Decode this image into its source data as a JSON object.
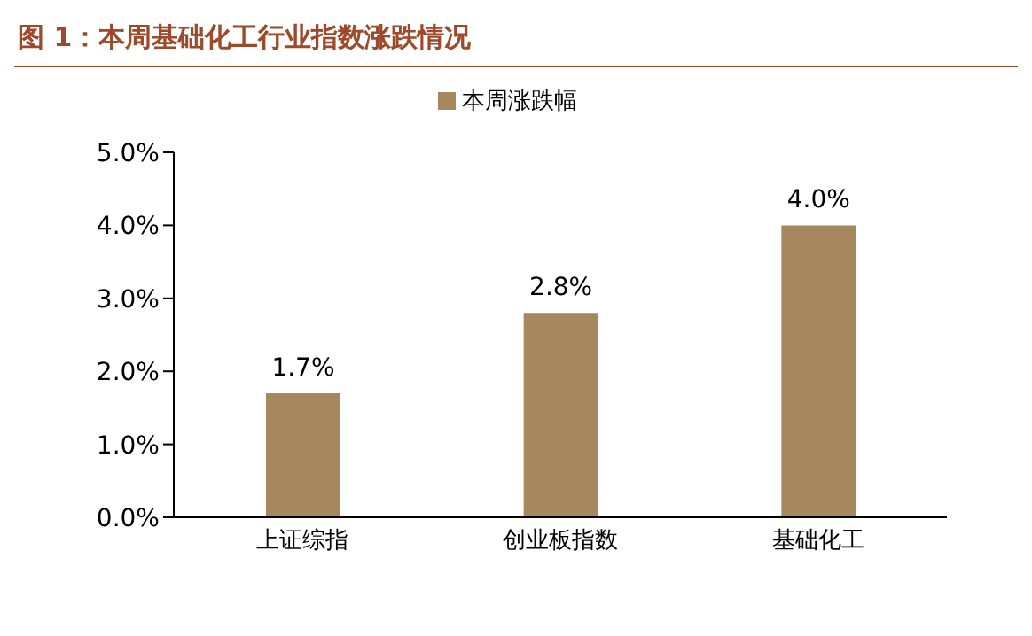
{
  "chart_data": {
    "type": "bar",
    "title": "图 1：本周基础化工行业指数涨跌情况",
    "categories": [
      "上证综指",
      "创业板指数",
      "基础化工"
    ],
    "series": [
      {
        "name": "本周涨跌幅",
        "color": "#a6875e",
        "values": [
          1.7,
          2.8,
          4.0
        ],
        "value_labels": [
          "1.7%",
          "2.8%",
          "4.0%"
        ]
      }
    ],
    "ylim": [
      0,
      5
    ],
    "yticks": [
      {
        "value": 0,
        "label": "0.0%"
      },
      {
        "value": 1,
        "label": "1.0%"
      },
      {
        "value": 2,
        "label": "2.0%"
      },
      {
        "value": 3,
        "label": "3.0%"
      },
      {
        "value": 4,
        "label": "4.0%"
      },
      {
        "value": 5,
        "label": "5.0%"
      }
    ],
    "grid": false,
    "legend": "top"
  }
}
